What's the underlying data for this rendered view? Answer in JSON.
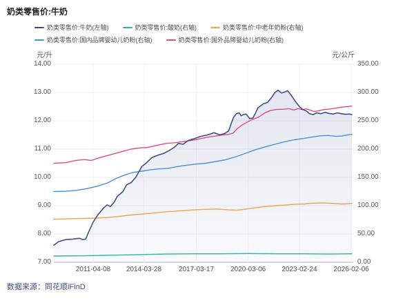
{
  "title": "奶类零售价:牛奶",
  "source": "数据来源：同花顺iFinD",
  "axes": {
    "left_unit": "元/升",
    "right_unit": "元/公斤"
  },
  "colors": {
    "grid": "#ededf4",
    "vgrid": "#f2f3f8",
    "axis_line": "#b0b3bd",
    "axis_text": "#595959",
    "legend_text": "#4d4d4d",
    "title_text": "#1f1f1f",
    "source_text": "#3f4d80",
    "fill_top": "rgba(90,105,165,0.17)",
    "fill_bottom": "rgba(90,105,165,0.03)"
  },
  "chart_data": {
    "type": "line",
    "title": "奶类零售价:牛奶",
    "grid": true,
    "legend_position": "top",
    "y_left": {
      "label": "元/升",
      "min": 7,
      "max": 14,
      "ticks": [
        "14.00",
        "13.00",
        "12.00",
        "11.00",
        "10.00",
        "9.00",
        "8.00",
        "7.00"
      ],
      "tick_values": [
        14,
        13,
        12,
        11,
        10,
        9,
        8,
        7
      ]
    },
    "y_right": {
      "label": "元/公斤",
      "min": 0,
      "max": 350,
      "ticks": [
        "350.00",
        "300.00",
        "250.00",
        "200.00",
        "150.00",
        "100.00",
        "50.00",
        "0.00"
      ],
      "tick_values": [
        350,
        300,
        250,
        200,
        150,
        100,
        50,
        0
      ]
    },
    "x_ticks": [
      {
        "t": 0.132,
        "label": "2011-04-08"
      },
      {
        "t": 0.302,
        "label": "2014-03-28"
      },
      {
        "t": 0.478,
        "label": "2017-03-17"
      },
      {
        "t": 0.652,
        "label": "2020-03-06"
      },
      {
        "t": 0.824,
        "label": "2023-02-24"
      },
      {
        "t": 0.998,
        "label": "2026-02-06"
      }
    ],
    "series": [
      {
        "name": "奶类零售价:牛奶(左轴)",
        "key": "milk-line",
        "axis": "left",
        "color": "#3e4c8c",
        "width": 1.6,
        "fill": true,
        "points": [
          [
            0,
            7.6
          ],
          [
            0.016,
            7.73
          ],
          [
            0.039,
            7.8
          ],
          [
            0.063,
            7.82
          ],
          [
            0.086,
            7.85
          ],
          [
            0.097,
            7.8
          ],
          [
            0.107,
            7.82
          ],
          [
            0.116,
            8.05
          ],
          [
            0.132,
            8.42
          ],
          [
            0.148,
            8.68
          ],
          [
            0.167,
            8.92
          ],
          [
            0.179,
            9.03
          ],
          [
            0.19,
            8.97
          ],
          [
            0.202,
            9.12
          ],
          [
            0.213,
            9.33
          ],
          [
            0.232,
            9.5
          ],
          [
            0.244,
            9.74
          ],
          [
            0.26,
            9.82
          ],
          [
            0.276,
            10.02
          ],
          [
            0.295,
            10.38
          ],
          [
            0.311,
            10.52
          ],
          [
            0.329,
            10.7
          ],
          [
            0.348,
            10.78
          ],
          [
            0.369,
            10.85
          ],
          [
            0.387,
            10.95
          ],
          [
            0.404,
            11.06
          ],
          [
            0.418,
            11.2
          ],
          [
            0.434,
            11.17
          ],
          [
            0.45,
            11.3
          ],
          [
            0.469,
            11.36
          ],
          [
            0.492,
            11.45
          ],
          [
            0.515,
            11.5
          ],
          [
            0.538,
            11.58
          ],
          [
            0.557,
            11.5
          ],
          [
            0.575,
            11.56
          ],
          [
            0.587,
            11.65
          ],
          [
            0.595,
            11.9
          ],
          [
            0.603,
            12.12
          ],
          [
            0.612,
            12.25
          ],
          [
            0.622,
            12.28
          ],
          [
            0.628,
            12.18
          ],
          [
            0.636,
            12.22
          ],
          [
            0.645,
            12.24
          ],
          [
            0.657,
            12.08
          ],
          [
            0.668,
            12.1
          ],
          [
            0.676,
            12.26
          ],
          [
            0.685,
            12.46
          ],
          [
            0.703,
            12.6
          ],
          [
            0.717,
            12.65
          ],
          [
            0.729,
            12.8
          ],
          [
            0.742,
            13.0
          ],
          [
            0.752,
            13.08
          ],
          [
            0.764,
            12.98
          ],
          [
            0.775,
            13.02
          ],
          [
            0.784,
            13.06
          ],
          [
            0.793,
            12.95
          ],
          [
            0.803,
            12.8
          ],
          [
            0.812,
            12.66
          ],
          [
            0.824,
            12.5
          ],
          [
            0.835,
            12.4
          ],
          [
            0.847,
            12.35
          ],
          [
            0.858,
            12.25
          ],
          [
            0.87,
            12.22
          ],
          [
            0.882,
            12.28
          ],
          [
            0.896,
            12.25
          ],
          [
            0.91,
            12.3
          ],
          [
            0.923,
            12.26
          ],
          [
            0.937,
            12.24
          ],
          [
            0.951,
            12.28
          ],
          [
            0.965,
            12.25
          ],
          [
            0.979,
            12.23
          ],
          [
            0.991,
            12.24
          ],
          [
            1,
            12.22
          ]
        ]
      },
      {
        "name": "奶类零售价:酸奶(右轴)",
        "key": "yogurt-line",
        "axis": "right",
        "color": "#2ab5a4",
        "width": 1.4,
        "fill": false,
        "points": [
          [
            0,
            11
          ],
          [
            0.097,
            11.5
          ],
          [
            0.19,
            12.5
          ],
          [
            0.283,
            13.5
          ],
          [
            0.376,
            14.5
          ],
          [
            0.469,
            15
          ],
          [
            0.561,
            15
          ],
          [
            0.654,
            15.5
          ],
          [
            0.747,
            15
          ],
          [
            0.84,
            15
          ],
          [
            0.921,
            14.5
          ],
          [
            1,
            15
          ]
        ]
      },
      {
        "name": "奶类零售价:中老年奶粉(右轴)",
        "key": "senior-powder-line",
        "axis": "right",
        "color": "#f5a14e",
        "width": 1.4,
        "fill": false,
        "points": [
          [
            0,
            76
          ],
          [
            0.051,
            77
          ],
          [
            0.097,
            77.5
          ],
          [
            0.139,
            78
          ],
          [
            0.179,
            79
          ],
          [
            0.218,
            81
          ],
          [
            0.26,
            83.5
          ],
          [
            0.302,
            85.5
          ],
          [
            0.343,
            87.5
          ],
          [
            0.385,
            89.5
          ],
          [
            0.427,
            91
          ],
          [
            0.469,
            92.5
          ],
          [
            0.51,
            93.5
          ],
          [
            0.548,
            94
          ],
          [
            0.585,
            92.5
          ],
          [
            0.615,
            92
          ],
          [
            0.645,
            94
          ],
          [
            0.677,
            96.5
          ],
          [
            0.71,
            98.5
          ],
          [
            0.742,
            100
          ],
          [
            0.775,
            101
          ],
          [
            0.807,
            102.5
          ],
          [
            0.84,
            103
          ],
          [
            0.872,
            104.5
          ],
          [
            0.905,
            105
          ],
          [
            0.933,
            104
          ],
          [
            0.96,
            103
          ],
          [
            0.979,
            103
          ],
          [
            1,
            104
          ]
        ]
      },
      {
        "name": "奶类零售价:国内品牌婴幼儿奶粉(右轴)",
        "key": "domestic-formula-line",
        "axis": "right",
        "color": "#4b8fd5",
        "width": 1.4,
        "fill": false,
        "points": [
          [
            0,
            125
          ],
          [
            0.039,
            125.5
          ],
          [
            0.074,
            127
          ],
          [
            0.109,
            130
          ],
          [
            0.144,
            134
          ],
          [
            0.179,
            140
          ],
          [
            0.213,
            149
          ],
          [
            0.237,
            154
          ],
          [
            0.264,
            158.5
          ],
          [
            0.295,
            161
          ],
          [
            0.325,
            163.5
          ],
          [
            0.353,
            165
          ],
          [
            0.383,
            166
          ],
          [
            0.413,
            169
          ],
          [
            0.445,
            171.5
          ],
          [
            0.478,
            173.5
          ],
          [
            0.51,
            175
          ],
          [
            0.543,
            178
          ],
          [
            0.575,
            181
          ],
          [
            0.608,
            186
          ],
          [
            0.643,
            192.5
          ],
          [
            0.677,
            199
          ],
          [
            0.71,
            204
          ],
          [
            0.742,
            208.5
          ],
          [
            0.775,
            213
          ],
          [
            0.807,
            216.5
          ],
          [
            0.84,
            219
          ],
          [
            0.868,
            221.5
          ],
          [
            0.896,
            223.5
          ],
          [
            0.923,
            224
          ],
          [
            0.947,
            222.5
          ],
          [
            0.967,
            223
          ],
          [
            0.984,
            225
          ],
          [
            1,
            226
          ]
        ]
      },
      {
        "name": "奶类零售价:国外品牌婴幼儿奶粉(右轴)",
        "key": "foreign-formula-line",
        "axis": "right",
        "color": "#e24b83",
        "width": 1.4,
        "fill": false,
        "points": [
          [
            0,
            175
          ],
          [
            0.039,
            176
          ],
          [
            0.074,
            180
          ],
          [
            0.102,
            181.5
          ],
          [
            0.125,
            180
          ],
          [
            0.155,
            185
          ],
          [
            0.19,
            190
          ],
          [
            0.225,
            195
          ],
          [
            0.26,
            200
          ],
          [
            0.295,
            202.5
          ],
          [
            0.311,
            202.5
          ],
          [
            0.341,
            206
          ],
          [
            0.376,
            210
          ],
          [
            0.411,
            211.5
          ],
          [
            0.445,
            214
          ],
          [
            0.48,
            217
          ],
          [
            0.515,
            221
          ],
          [
            0.543,
            223
          ],
          [
            0.566,
            225
          ],
          [
            0.585,
            226
          ],
          [
            0.601,
            228
          ],
          [
            0.615,
            236
          ],
          [
            0.631,
            242.5
          ],
          [
            0.65,
            248
          ],
          [
            0.668,
            252.5
          ],
          [
            0.689,
            257
          ],
          [
            0.708,
            264
          ],
          [
            0.726,
            268
          ],
          [
            0.747,
            270
          ],
          [
            0.77,
            270.5
          ],
          [
            0.789,
            271.5
          ],
          [
            0.805,
            269
          ],
          [
            0.819,
            271.5
          ],
          [
            0.833,
            270
          ],
          [
            0.847,
            271
          ],
          [
            0.861,
            268.5
          ],
          [
            0.875,
            266.5
          ],
          [
            0.891,
            268
          ],
          [
            0.91,
            270
          ],
          [
            0.928,
            271
          ],
          [
            0.947,
            272.5
          ],
          [
            0.965,
            274
          ],
          [
            0.984,
            275
          ],
          [
            1,
            276
          ]
        ]
      }
    ]
  }
}
